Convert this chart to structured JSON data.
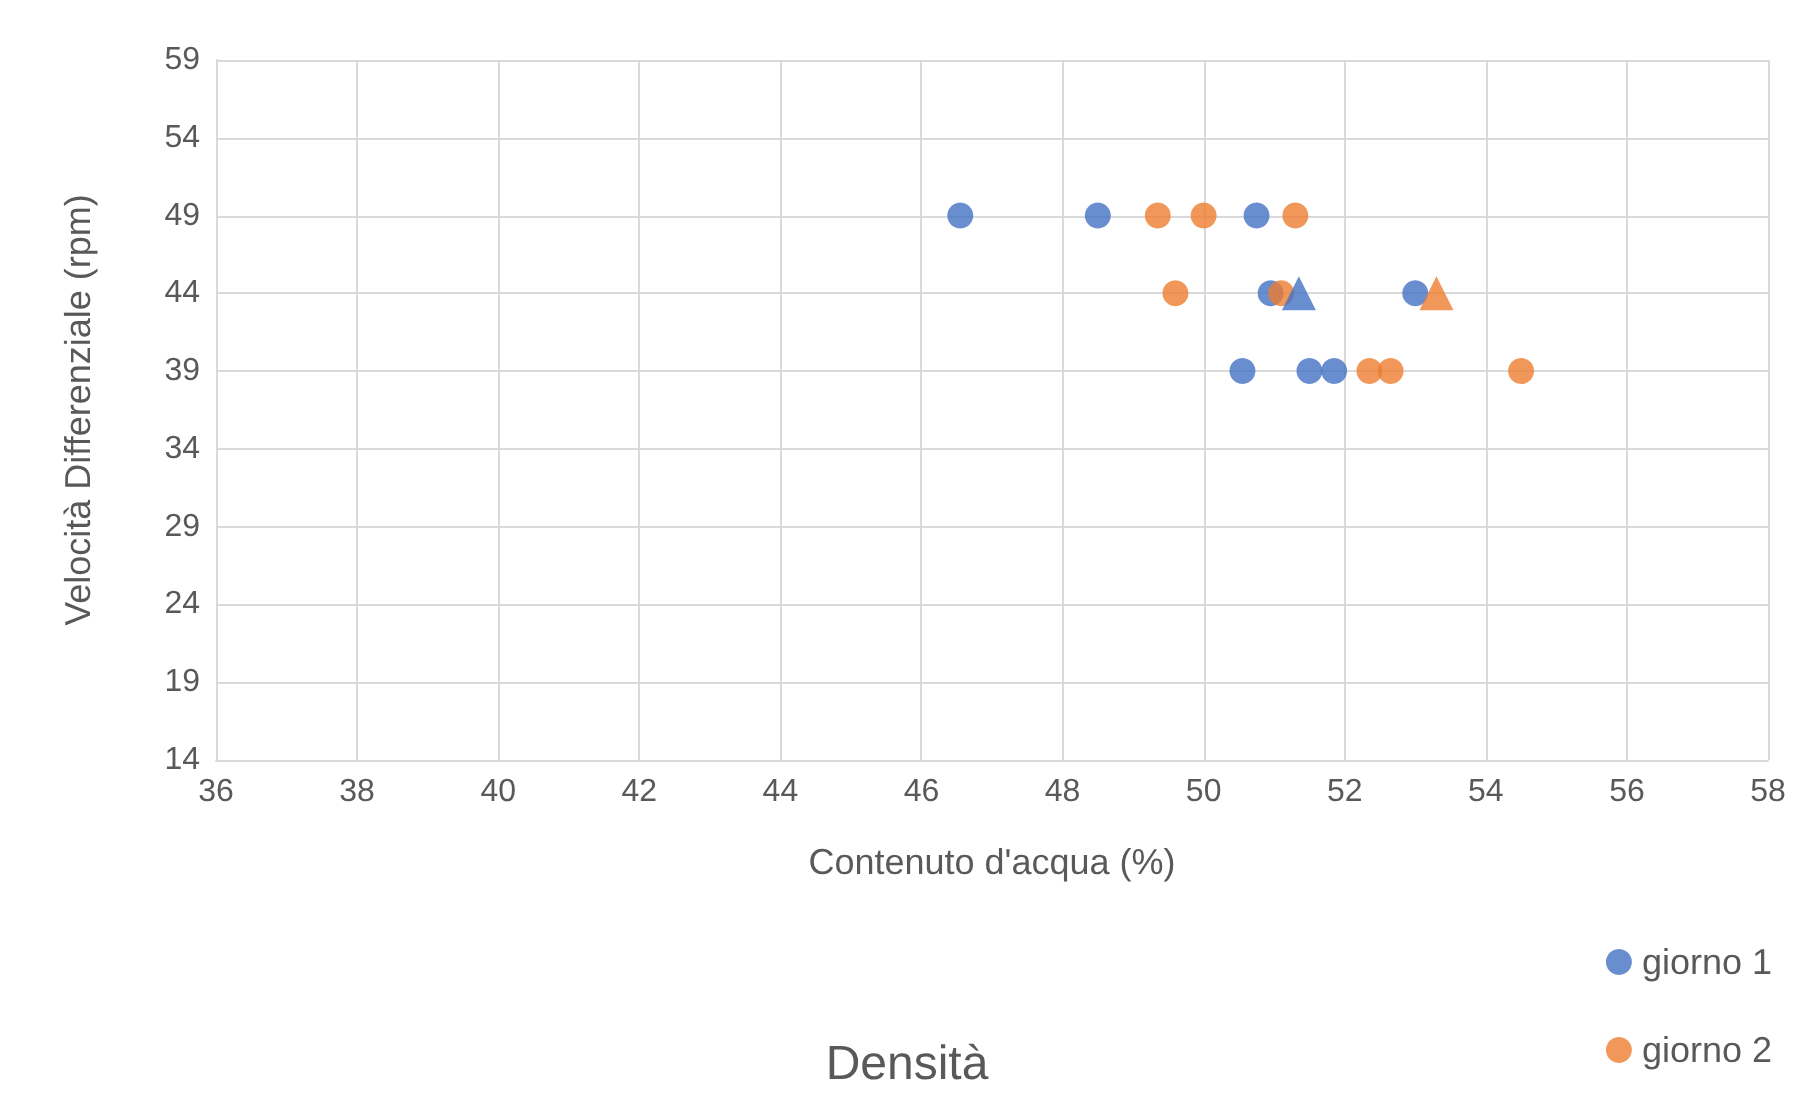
{
  "chart_data": {
    "type": "scatter",
    "title": "Densità",
    "xlabel": "Contenuto d'acqua (%)",
    "ylabel": "Velocità Differenziale (rpm)",
    "xlim": [
      36,
      58
    ],
    "xticks": [
      36,
      38,
      40,
      42,
      44,
      46,
      48,
      50,
      52,
      54,
      56,
      58
    ],
    "ylim": [
      14,
      59
    ],
    "yticks": [
      14,
      19,
      24,
      29,
      34,
      39,
      44,
      49,
      54,
      59
    ],
    "grid": true,
    "legend": "bottom right",
    "marker": "circle",
    "series": [
      {
        "name": "giorno 1",
        "color": "#4472c4",
        "x": [
          46.55,
          48.5,
          50.75,
          50.95,
          53.0,
          50.55,
          51.5,
          51.85
        ],
        "values": [
          49,
          49,
          49,
          44,
          44,
          39,
          39,
          39
        ]
      },
      {
        "name": "giorno 2",
        "color": "#ed7d31",
        "x": [
          49.35,
          50.0,
          51.3,
          49.6,
          51.1,
          52.35,
          52.65,
          54.5
        ],
        "values": [
          49,
          49,
          49,
          44,
          44,
          39,
          39,
          39
        ]
      },
      {
        "color": "#4472c4",
        "marker": "triangle",
        "x": [
          51.35
        ],
        "values": [
          44
        ]
      },
      {
        "color": "#ed7d31",
        "marker": "triangle",
        "x": [
          53.3
        ],
        "values": [
          44
        ]
      }
    ]
  }
}
